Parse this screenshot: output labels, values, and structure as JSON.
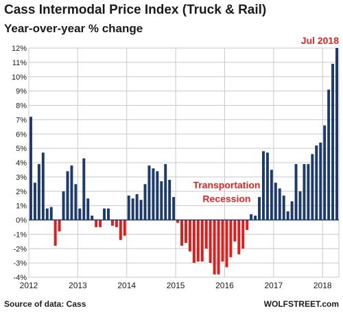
{
  "chart_data": {
    "type": "bar",
    "title": "Cass Intermodal Price Index (Truck & Rail)",
    "subtitle": "Year-over-year % change",
    "x_tick_labels": [
      "2012",
      "2013",
      "2014",
      "2015",
      "2016",
      "2017",
      "2018"
    ],
    "y_tick_labels": [
      "12%",
      "11%",
      "10%",
      "9%",
      "8%",
      "7%",
      "6%",
      "5%",
      "4%",
      "3%",
      "2%",
      "1%",
      "0%",
      "-1%",
      "-2%",
      "-3%",
      "-4%"
    ],
    "ylim": [
      -4,
      12
    ],
    "grid": true,
    "start_month": "2012-01",
    "values": [
      7.2,
      2.6,
      3.9,
      4.7,
      0.8,
      0.9,
      -1.8,
      -0.8,
      2.0,
      3.4,
      3.8,
      2.5,
      0.8,
      4.3,
      1.5,
      0.3,
      -0.5,
      -0.5,
      0.8,
      0.8,
      -0.4,
      -0.5,
      -1.4,
      -1.1,
      1.7,
      1.5,
      1.8,
      1.4,
      2.5,
      3.8,
      3.6,
      3.4,
      2.7,
      3.9,
      2.8,
      1.6,
      -0.2,
      -1.8,
      -1.6,
      -2.2,
      -3.0,
      -2.9,
      -2.9,
      -2.0,
      -3.0,
      -3.8,
      -3.8,
      -2.9,
      -3.3,
      -2.6,
      -1.5,
      -2.4,
      -2.0,
      -0.7,
      0.4,
      0.3,
      1.6,
      4.8,
      4.7,
      3.5,
      2.6,
      2.2,
      1.7,
      0.6,
      1.3,
      3.9,
      2.0,
      3.9,
      3.9,
      4.6,
      5.2,
      5.4,
      6.6,
      9.1,
      10.9,
      12.0
    ],
    "colors": {
      "positive": "#1c3a6c",
      "negative": "#e41b1b",
      "zero_line": "#1c3a6c",
      "grid": "#c8c8c8",
      "annotation": "#e32323"
    },
    "annotations": [
      {
        "text": "Jul 2018",
        "x": "2018-07"
      },
      {
        "text": "Transportation\nRecession",
        "x": "2016-01",
        "y": 2.2
      }
    ]
  },
  "footer": {
    "source": "Source of data: Cass",
    "brand": "WOLFSTREET.com"
  }
}
